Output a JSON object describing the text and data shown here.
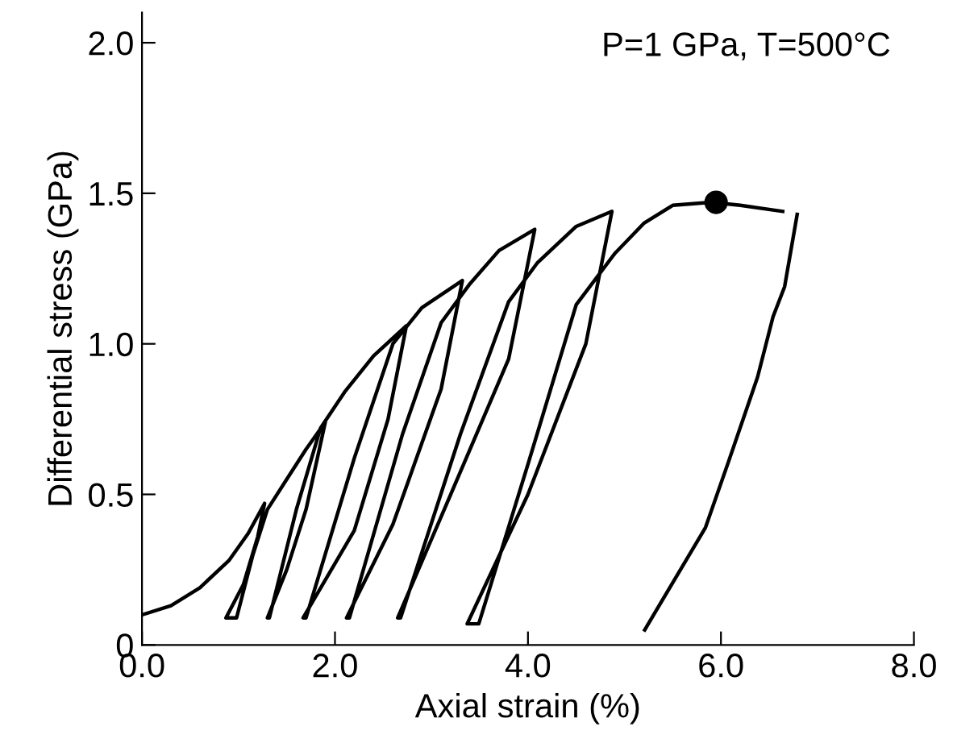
{
  "chart_data": {
    "type": "line",
    "xlabel": "Axial strain (%)",
    "ylabel": "Differential stress (GPa)",
    "annotations": [
      "P=1 GPa, T=500°C"
    ],
    "xlim": [
      0,
      8
    ],
    "xticks": [
      {
        "value": 0,
        "label": "0.0"
      },
      {
        "value": 2,
        "label": "2.0"
      },
      {
        "value": 4,
        "label": "4.0"
      },
      {
        "value": 6,
        "label": "6.0"
      },
      {
        "value": 8,
        "label": "8.0"
      }
    ],
    "ylim": [
      0,
      2.1
    ],
    "yticks": [
      0,
      0.5,
      {
        "value": 1,
        "label": "1.0"
      },
      1.5,
      {
        "value": 2,
        "label": "2.0"
      }
    ],
    "grid": false,
    "legend": false,
    "marker": "none",
    "line_style": "solid",
    "series": [
      {
        "color": "#000000",
        "x": [
          0,
          0.3,
          0.6,
          0.9,
          1.1,
          1.27,
          1.2,
          1.05,
          0.87,
          0.98,
          1.15,
          1.3,
          1.5,
          1.7,
          1.9,
          1.7,
          1.5,
          1.3,
          1.32,
          1.6,
          1.85,
          2.1,
          2.4,
          2.74,
          2.55,
          2.2,
          1.67,
          1.7,
          2.2,
          2.6,
          2.9,
          3.32,
          3.1,
          2.6,
          2.12,
          2.15,
          2.7,
          3.1,
          3.4,
          3.7,
          4.07,
          3.8,
          3.2,
          2.65,
          2.68,
          3.3,
          3.8,
          4.1,
          4.5,
          4.87,
          4.6,
          4.0,
          3.37,
          3.49,
          4.0,
          4.5,
          4.9,
          5.2,
          5.5,
          5.9,
          6.2,
          6.64
        ],
        "values": [
          0.1,
          0.13,
          0.19,
          0.28,
          0.37,
          0.47,
          0.36,
          0.2,
          0.09,
          0.09,
          0.3,
          0.45,
          0.55,
          0.65,
          0.74,
          0.45,
          0.25,
          0.09,
          0.09,
          0.45,
          0.72,
          0.84,
          0.96,
          1.06,
          0.75,
          0.38,
          0.09,
          0.09,
          0.62,
          1.0,
          1.12,
          1.21,
          0.85,
          0.4,
          0.09,
          0.09,
          0.7,
          1.07,
          1.2,
          1.31,
          1.38,
          0.95,
          0.5,
          0.09,
          0.09,
          0.7,
          1.14,
          1.27,
          1.39,
          1.44,
          1.0,
          0.5,
          0.07,
          0.07,
          0.6,
          1.13,
          1.3,
          1.4,
          1.46,
          1.47,
          1.46,
          1.44
        ]
      },
      {
        "color": "#000000",
        "x": [
          6.79,
          6.66,
          6.54,
          6.38,
          6.08,
          5.84,
          5.21
        ],
        "values": [
          1.43,
          1.19,
          1.09,
          0.89,
          0.61,
          0.39,
          0.05
        ]
      },
      {
        "type": "scatter",
        "marker": "circle",
        "color": "#000000",
        "x": [
          5.95
        ],
        "values": [
          1.47
        ]
      }
    ]
  }
}
